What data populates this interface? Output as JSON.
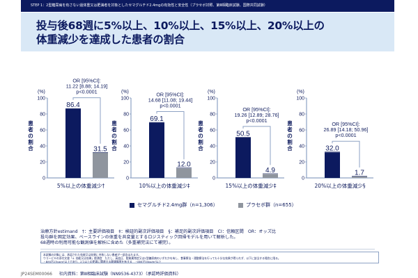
{
  "header": {
    "step_text": "STEP 1：2型糖尿病を有さない過体重又は肥満者を対象としたセマグルチド2.4mgの有効性と安全性（プラセボ対照、第Ⅲ相臨床試験、国際共同試験）",
    "title_line1": "投与後68週に5%以上、10%以上、15%以上、20%以上の",
    "title_line2": "体重減少を達成した患者の割合"
  },
  "colors": {
    "semaglutide": "#0c1a5f",
    "placebo": "#8f959e",
    "axis": "#8da2c4",
    "bracket": "#8da2c4"
  },
  "chart_data": [
    {
      "type": "bar",
      "title": "5%以上の体重減少†",
      "categories": [
        "セマグルチド2.4mg群",
        "プラセボ群"
      ],
      "values": [
        86.4,
        31.5
      ],
      "value_labels": [
        "86.4",
        "31.5"
      ],
      "xlabel": "5%以上の体重減少†",
      "ylabel": "患者の割合",
      "yunit": "(%)",
      "ylim": [
        0,
        100
      ],
      "yticks": [
        0,
        20,
        40,
        60,
        80,
        100
      ],
      "annotation": [
        "OR [95%CI]:",
        "11.22 [8.88; 14.19]",
        "p<0.0001"
      ]
    },
    {
      "type": "bar",
      "title": "10%以上の体重減少‡",
      "categories": [
        "セマグルチド2.4mg群",
        "プラセボ群"
      ],
      "values": [
        69.1,
        12.0
      ],
      "value_labels": [
        "69.1",
        "12.0"
      ],
      "xlabel": "10%以上の体重減少‡",
      "ylabel": "患者の割合",
      "yunit": "(%)",
      "ylim": [
        0,
        100
      ],
      "yticks": [
        0,
        20,
        40,
        60,
        80,
        100
      ],
      "annotation": [
        "OR [95%CI]:",
        "14.68 [11.08; 19.44]",
        "p<0.0001"
      ]
    },
    {
      "type": "bar",
      "title": "15%以上の体重減少‡",
      "categories": [
        "セマグルチド2.4mg群",
        "プラセボ群"
      ],
      "values": [
        50.5,
        4.9
      ],
      "value_labels": [
        "50.5",
        "4.9"
      ],
      "xlabel": "15%以上の体重減少‡",
      "ylabel": "患者の割合",
      "yunit": "(%)",
      "ylim": [
        0,
        100
      ],
      "yticks": [
        0,
        20,
        40,
        60,
        80,
        100
      ],
      "annotation": [
        "OR [95%CI]:",
        "19.26 [12.89; 28.76]",
        "p<0.0001"
      ]
    },
    {
      "type": "bar",
      "title": "20%以上の体重減少§",
      "categories": [
        "セマグルチド2.4mg群",
        "プラセボ群"
      ],
      "values": [
        32.0,
        1.7
      ],
      "value_labels": [
        "32.0",
        "1.7"
      ],
      "xlabel": "20%以上の体重減少§",
      "ylabel": "患者の割合",
      "yunit": "(%)",
      "ylim": [
        0,
        100
      ],
      "yticks": [
        0,
        20,
        40,
        60,
        80,
        100
      ],
      "annotation": [
        "OR [95%CI]:",
        "26.89 [14.18; 50.96]",
        "p<0.0001"
      ]
    }
  ],
  "legend": [
    {
      "label": "セマグルチド2.4mg群（n=1,306）",
      "series": "semaglutide"
    },
    {
      "label": "プラセボ群（n=655）",
      "series": "placebo"
    }
  ],
  "notes": [
    "治療方針estimand　†：主要評価項目　‡：検証的副次評価項目　§：補足的副次評価項目　CI：信頼区間　OR：オッズ比",
    "投与群を固定効果、ベースラインの体重を共変量とするロジスティック回帰モデルを用いて解析した。",
    "68週時の利用可能な観測値を解析に含めた（多重補完法にて補完）。"
  ],
  "footnote_box": [
    "本試験の対象には、承認された効能又は効果に合致しない患者が一部含まれます。",
    "ウゴービ®の添付文書「4. 効能又は効果」肥満症　ただし、高血圧、脂質異常症又は2型糖尿病のいずれかを有し、食事療法・運動療法を行っても十分な効果が得られず、以下に該当する場合に限る。",
    "・BMIが27kg/m²以上であり、2つ以上の肥満に関連する健康障害を有する　・BMIが35kg/m²以上"
  ],
  "footer": {
    "code": "JP24SEM00066",
    "text": "社内資料：第Ⅲ相臨床試験（NN9536-4373）（承認時評価資料）"
  }
}
